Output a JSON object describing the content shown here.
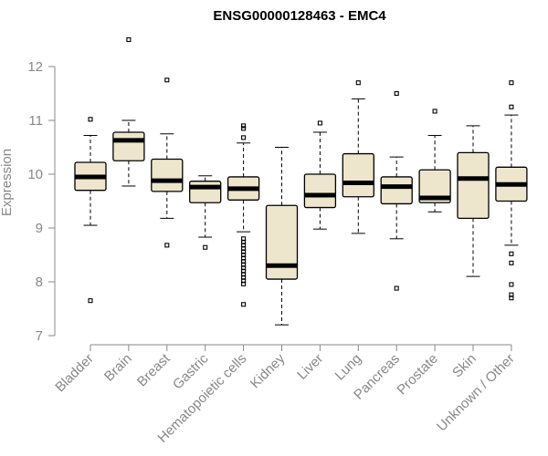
{
  "chart_data": {
    "type": "boxplot",
    "title": "ENSG00000128463 - EMC4",
    "xlabel": "",
    "ylabel": "Expression",
    "ylim": [
      7,
      12
    ],
    "yticks": [
      7,
      8,
      9,
      10,
      11,
      12
    ],
    "categories": [
      "Bladder",
      "Brain",
      "Breast",
      "Gastric",
      "Hematopoietic cells",
      "Kidney",
      "Liver",
      "Lung",
      "Pancreas",
      "Prostate",
      "Skin",
      "Unknown / Other"
    ],
    "boxes": [
      {
        "min": 9.05,
        "q1": 9.7,
        "median": 9.95,
        "q3": 10.22,
        "max": 10.72,
        "outliers": [
          11.02,
          7.65
        ]
      },
      {
        "min": 9.78,
        "q1": 10.25,
        "median": 10.63,
        "q3": 10.78,
        "max": 11.0,
        "outliers": [
          12.5
        ]
      },
      {
        "min": 9.18,
        "q1": 9.68,
        "median": 9.88,
        "q3": 10.28,
        "max": 10.75,
        "outliers": [
          11.75,
          8.68
        ]
      },
      {
        "min": 8.83,
        "q1": 9.47,
        "median": 9.76,
        "q3": 9.87,
        "max": 9.97,
        "outliers": [
          8.64
        ]
      },
      {
        "min": 8.93,
        "q1": 9.52,
        "median": 9.73,
        "q3": 9.95,
        "max": 10.58,
        "outliers": [
          10.68,
          10.85,
          10.9,
          8.8,
          8.74,
          8.68,
          8.62,
          8.56,
          8.5,
          8.44,
          8.38,
          8.32,
          8.26,
          8.2,
          8.14,
          8.08,
          8.02,
          7.96,
          7.58
        ]
      },
      {
        "min": 7.2,
        "q1": 8.05,
        "median": 8.3,
        "q3": 9.42,
        "max": 10.5,
        "outliers": []
      },
      {
        "min": 8.98,
        "q1": 9.38,
        "median": 9.61,
        "q3": 10.0,
        "max": 10.78,
        "outliers": [
          10.95
        ]
      },
      {
        "min": 8.9,
        "q1": 9.58,
        "median": 9.84,
        "q3": 10.38,
        "max": 11.4,
        "outliers": [
          11.7
        ]
      },
      {
        "min": 8.8,
        "q1": 9.45,
        "median": 9.77,
        "q3": 9.95,
        "max": 10.32,
        "outliers": [
          11.5,
          7.88
        ]
      },
      {
        "min": 9.3,
        "q1": 9.47,
        "median": 9.56,
        "q3": 10.08,
        "max": 10.72,
        "outliers": [
          11.17
        ]
      },
      {
        "min": 8.1,
        "q1": 9.18,
        "median": 9.92,
        "q3": 10.4,
        "max": 10.9,
        "outliers": []
      },
      {
        "min": 8.68,
        "q1": 9.5,
        "median": 9.81,
        "q3": 10.13,
        "max": 11.1,
        "outliers": [
          11.25,
          11.7,
          8.52,
          8.35,
          7.95,
          7.76,
          7.7
        ]
      }
    ]
  }
}
